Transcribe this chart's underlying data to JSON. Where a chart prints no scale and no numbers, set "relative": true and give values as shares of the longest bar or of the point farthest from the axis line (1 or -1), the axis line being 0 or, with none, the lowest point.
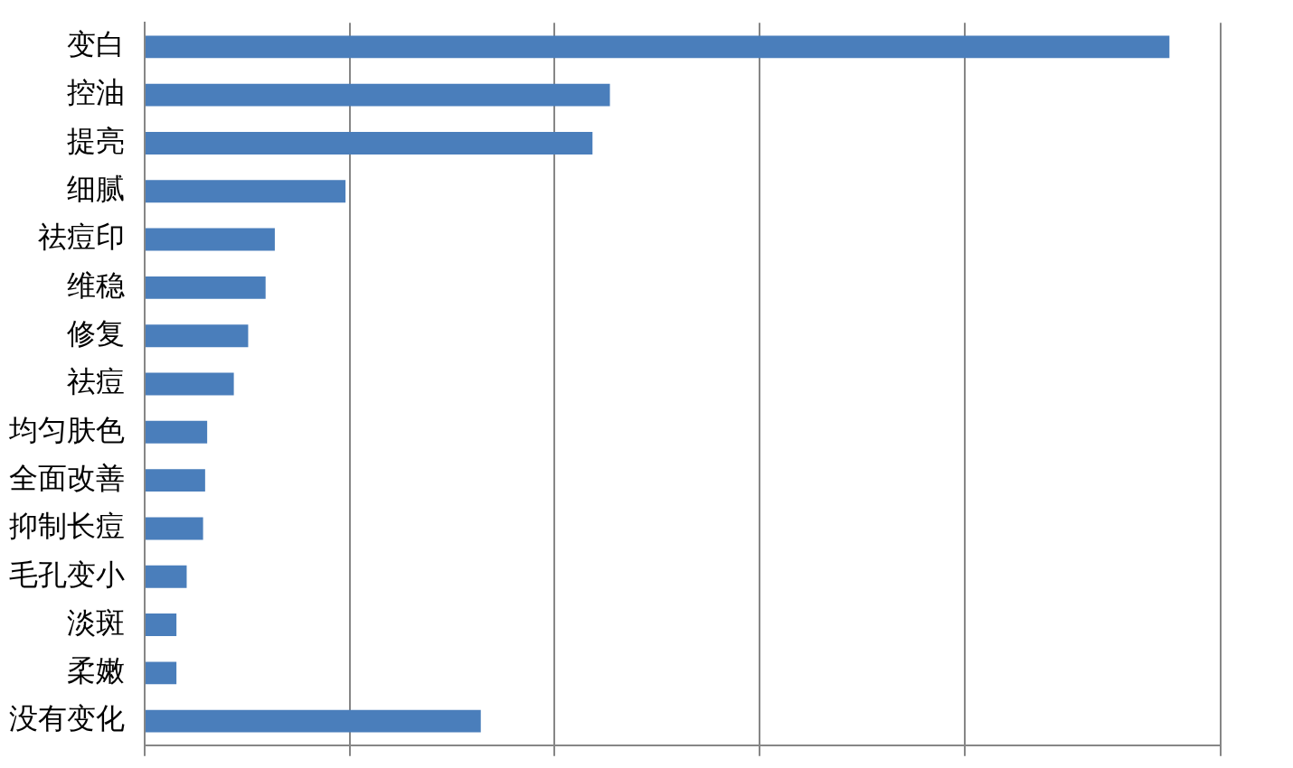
{
  "chart_data": {
    "type": "bar",
    "orientation": "horizontal",
    "relative": true,
    "grid": "x",
    "categories": [
      "变白",
      "控油",
      "提亮",
      "细腻",
      "祛痘印",
      "维稳",
      "修复",
      "祛痘",
      "均匀肤色",
      "全面改善",
      "抑制长痘",
      "毛孔变小",
      "淡斑",
      "柔嫩",
      "没有变化"
    ],
    "values": [
      1,
      0.454,
      0.437,
      0.196,
      0.127,
      0.118,
      0.101,
      0.087,
      0.061,
      0.059,
      0.057,
      0.041,
      0.031,
      0.031,
      0.328
    ],
    "color": "#4a7ebb"
  }
}
